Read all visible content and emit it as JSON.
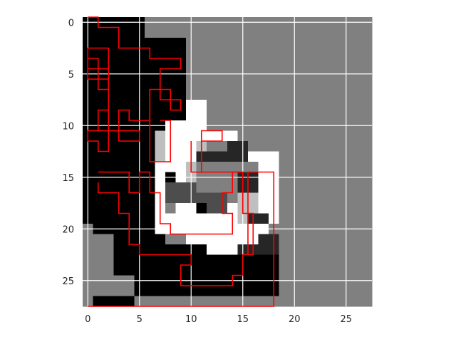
{
  "chart_data": {
    "type": "heatmap",
    "rows": 28,
    "cols": 28,
    "xlim": [
      -0.5,
      27.5
    ],
    "ylim": [
      27.5,
      -0.5
    ],
    "x_ticks": [
      0,
      5,
      10,
      15,
      20,
      25
    ],
    "y_ticks": [
      0,
      5,
      10,
      15,
      20,
      25
    ],
    "x_tick_labels": [
      "0",
      "5",
      "10",
      "15",
      "20",
      "25"
    ],
    "y_tick_labels": [
      "0",
      "5",
      "10",
      "15",
      "20",
      "25"
    ],
    "grid": true,
    "colormap": "gray",
    "background_value": 0.5,
    "regions": [
      {
        "value": 0.0,
        "rects": [
          [
            0,
            0,
            5,
            28
          ],
          [
            5,
            0,
            1,
            2
          ],
          [
            5,
            2,
            5,
            10
          ],
          [
            5,
            12,
            3,
            6
          ],
          [
            8,
            15,
            2,
            3
          ],
          [
            10,
            17,
            3,
            3
          ],
          [
            13,
            20,
            1,
            2
          ],
          [
            14,
            21,
            5,
            6
          ],
          [
            9,
            18,
            5,
            1
          ],
          [
            5,
            18,
            3,
            9
          ],
          [
            8,
            22,
            6,
            5
          ]
        ]
      },
      {
        "value": 0.5,
        "rects": [
          [
            0,
            20,
            1,
            8
          ],
          [
            1,
            21,
            2,
            4
          ],
          [
            1,
            25,
            4,
            2
          ]
        ]
      },
      {
        "value": 1.0,
        "rects": [
          [
            7,
            14,
            1,
            5
          ],
          [
            8,
            13,
            2,
            2
          ],
          [
            8,
            10,
            2,
            3
          ],
          [
            10,
            8,
            2,
            4
          ],
          [
            10,
            12,
            1,
            2
          ],
          [
            11,
            11,
            4,
            1
          ],
          [
            14,
            13,
            4,
            1
          ],
          [
            17,
            13,
            2,
            5
          ],
          [
            18,
            14,
            1,
            5
          ],
          [
            17,
            18,
            2,
            2
          ],
          [
            14,
            18,
            4,
            2
          ],
          [
            10,
            20,
            8,
            2
          ],
          [
            12,
            22,
            4,
            1
          ],
          [
            7,
            19,
            3,
            2
          ],
          [
            10,
            19,
            2,
            2
          ],
          [
            12,
            19,
            2,
            3
          ],
          [
            9,
            10,
            2,
            9
          ]
        ]
      },
      {
        "value": 0.3,
        "rects": [
          [
            8,
            16,
            3,
            2
          ],
          [
            12,
            17,
            2,
            2
          ],
          [
            11,
            17,
            1,
            1
          ]
        ]
      },
      {
        "value": 0.75,
        "rects": [
          [
            7,
            11,
            1,
            3
          ],
          [
            10,
            14,
            1,
            2
          ],
          [
            15,
            17,
            2,
            3
          ],
          [
            11,
            12,
            1,
            1
          ]
        ]
      },
      {
        "value": 0.15,
        "rects": [
          [
            11,
            13,
            3,
            1
          ],
          [
            14,
            12,
            2,
            2
          ],
          [
            15,
            15,
            2,
            2
          ],
          [
            16,
            19,
            2,
            1
          ],
          [
            17,
            21,
            2,
            2
          ],
          [
            15,
            22,
            2,
            1
          ]
        ]
      }
    ],
    "overlay_color": "#ff0000",
    "overlay_paths": [
      [
        [
          0,
          -0.5
        ],
        [
          1,
          -0.5
        ],
        [
          1,
          0.5
        ],
        [
          3,
          0.5
        ],
        [
          3,
          2.5
        ],
        [
          6,
          2.5
        ],
        [
          6,
          3.5
        ],
        [
          9,
          3.5
        ],
        [
          9,
          4.5
        ],
        [
          7,
          4.5
        ],
        [
          7,
          6.5
        ],
        [
          8,
          6.5
        ],
        [
          8,
          8.5
        ],
        [
          9,
          8.5
        ],
        [
          9,
          7.5
        ],
        [
          7,
          7.5
        ],
        [
          7,
          6.5
        ],
        [
          6,
          6.5
        ],
        [
          6,
          9.5
        ],
        [
          4,
          9.5
        ],
        [
          4,
          8.5
        ],
        [
          3,
          8.5
        ],
        [
          3,
          11.5
        ],
        [
          5,
          11.5
        ],
        [
          5,
          10.5
        ],
        [
          1,
          10.5
        ],
        [
          1,
          8.5
        ],
        [
          2,
          8.5
        ],
        [
          2,
          2.5
        ],
        [
          0,
          2.5
        ],
        [
          0,
          5.5
        ],
        [
          2,
          5.5
        ],
        [
          2,
          4.5
        ],
        [
          0,
          4.5
        ],
        [
          0,
          3.5
        ],
        [
          1,
          3.5
        ],
        [
          1,
          6.5
        ],
        [
          2,
          6.5
        ],
        [
          2,
          12.5
        ],
        [
          1,
          12.5
        ],
        [
          1,
          11.5
        ],
        [
          0,
          11.5
        ],
        [
          0,
          10.5
        ],
        [
          1,
          10.5
        ]
      ],
      [
        [
          6,
          6.5
        ],
        [
          6,
          13.5
        ],
        [
          8,
          13.5
        ],
        [
          8,
          9.5
        ],
        [
          7,
          9.5
        ]
      ],
      [
        [
          1,
          14.5
        ],
        [
          4,
          14.5
        ],
        [
          4,
          16.5
        ],
        [
          5,
          16.5
        ],
        [
          5,
          14.5
        ],
        [
          6,
          14.5
        ],
        [
          6,
          16.5
        ],
        [
          7,
          16.5
        ],
        [
          7,
          19.5
        ],
        [
          8,
          19.5
        ],
        [
          8,
          20.5
        ],
        [
          14,
          20.5
        ],
        [
          14,
          18.5
        ],
        [
          13,
          18.5
        ],
        [
          13,
          16.5
        ],
        [
          14,
          16.5
        ],
        [
          14,
          14.5
        ],
        [
          15,
          14.5
        ],
        [
          15,
          18.5
        ],
        [
          16,
          18.5
        ],
        [
          16,
          22.5
        ],
        [
          15,
          22.5
        ],
        [
          15,
          24.5
        ],
        [
          14,
          24.5
        ],
        [
          14,
          25.5
        ],
        [
          9,
          25.5
        ],
        [
          9,
          23.5
        ],
        [
          10,
          23.5
        ],
        [
          10,
          22.5
        ],
        [
          5,
          22.5
        ],
        [
          5,
          21.5
        ],
        [
          4,
          21.5
        ],
        [
          4,
          18.5
        ],
        [
          3,
          18.5
        ],
        [
          3,
          16.5
        ],
        [
          1,
          16.5
        ],
        [
          1,
          15.5
        ]
      ],
      [
        [
          10,
          11.5
        ],
        [
          10,
          14.5
        ],
        [
          11,
          14.5
        ],
        [
          11,
          11.5
        ],
        [
          13,
          11.5
        ],
        [
          13,
          10.5
        ],
        [
          11,
          10.5
        ],
        [
          11,
          14.5
        ],
        [
          15,
          14.5
        ]
      ],
      [
        [
          15.5,
          22.5
        ],
        [
          15.5,
          14.5
        ],
        [
          18,
          14.5
        ],
        [
          18,
          27.5
        ],
        [
          0,
          27.5
        ]
      ]
    ]
  }
}
